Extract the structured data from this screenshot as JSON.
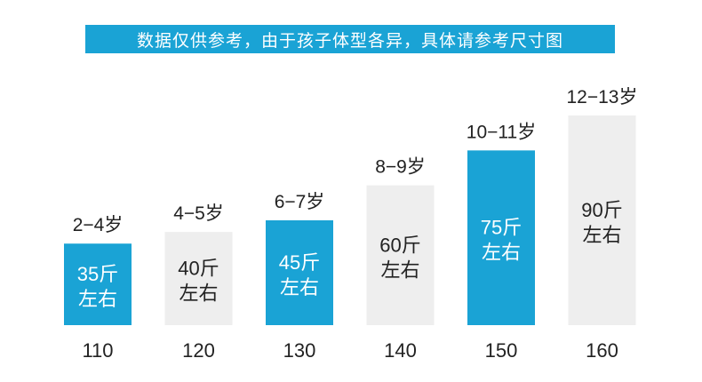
{
  "banner_text": "数据仅供参考，由于孩子体型各异，具体请参考尺寸图",
  "colors": {
    "accent": "#1aa3d5",
    "neutral": "#eeeeee",
    "banner_text": "#ffffff"
  },
  "chart_data": {
    "type": "bar",
    "categories": [
      "110",
      "120",
      "130",
      "140",
      "150",
      "160"
    ],
    "values": [
      35,
      40,
      45,
      60,
      75,
      90
    ],
    "age_labels": [
      "2−4岁",
      "4−5岁",
      "6−7岁",
      "8−9岁",
      "10−11岁",
      "12−13岁"
    ],
    "weight_labels": [
      [
        "35斤",
        "左右"
      ],
      [
        "40斤",
        "左右"
      ],
      [
        "45斤",
        "左右"
      ],
      [
        "60斤",
        "左右"
      ],
      [
        "75斤",
        "左右"
      ],
      [
        "90斤",
        "左右"
      ]
    ],
    "bar_colors": [
      "#1aa3d5",
      "#eeeeee",
      "#1aa3d5",
      "#eeeeee",
      "#1aa3d5",
      "#eeeeee"
    ],
    "title": "",
    "xlabel": "",
    "ylabel": "",
    "ylim": [
      0,
      100
    ],
    "grid": false,
    "legend": "none"
  }
}
